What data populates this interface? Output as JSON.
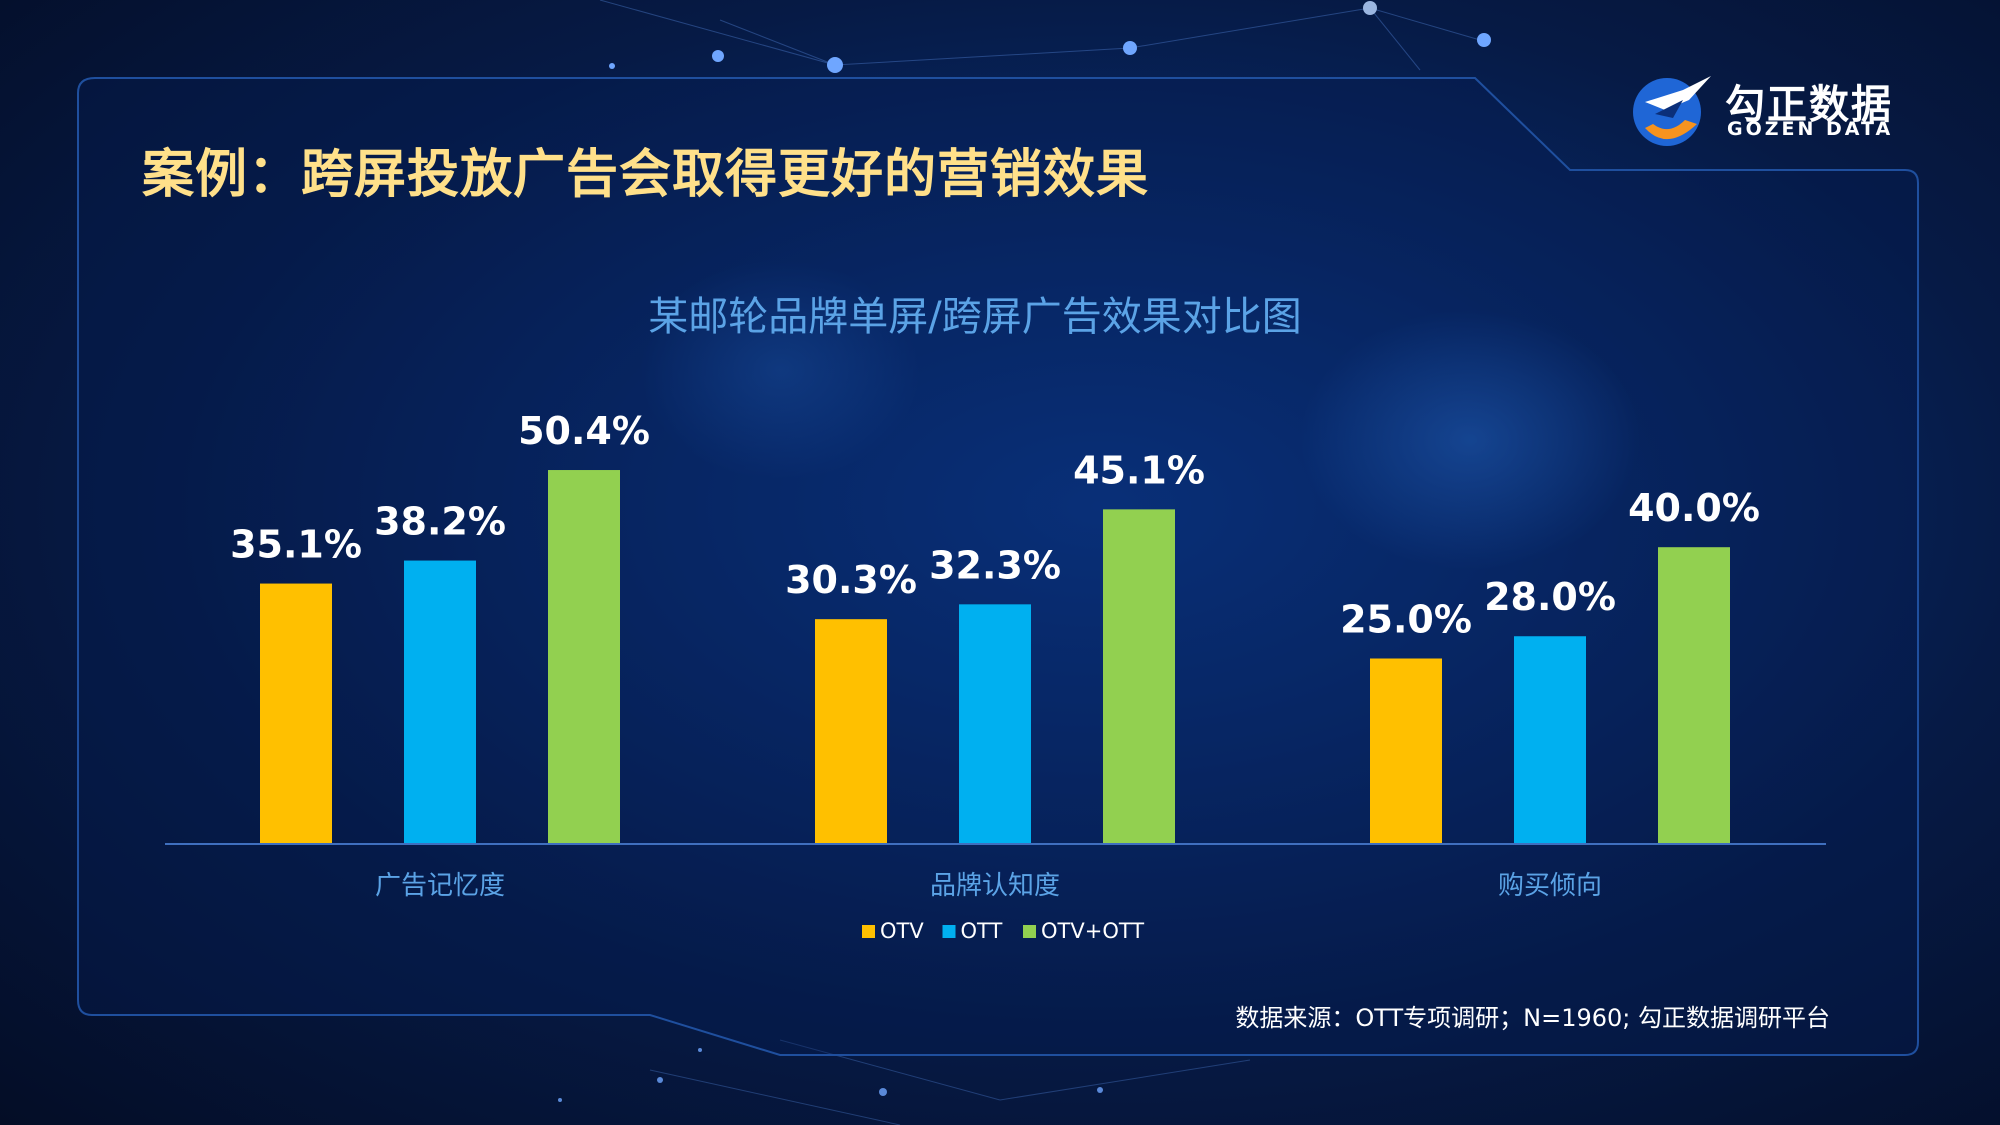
{
  "slide": {
    "title": "案例：跨屏投放广告会取得更好的营销效果",
    "source": "数据来源：OTT专项调研；N=1960; 勾正数据调研平台"
  },
  "logo": {
    "cn": "勾正数据",
    "en": "GOZEN DATA"
  },
  "colors": {
    "otv": "#ffc000",
    "ott": "#00b0f0",
    "otv_ott": "#92d050",
    "title": "#ffe08a",
    "subtitle": "#5ba3e6"
  },
  "chart_data": {
    "type": "bar",
    "title": "某邮轮品牌单屏/跨屏广告效果对比图",
    "categories": [
      "广告记忆度",
      "品牌认知度",
      "购买倾向"
    ],
    "series": [
      {
        "name": "OTV",
        "values": [
          35.1,
          30.3,
          25.0
        ],
        "color": "#ffc000"
      },
      {
        "name": "OTT",
        "values": [
          38.2,
          32.3,
          28.0
        ],
        "color": "#00b0f0"
      },
      {
        "name": "OTV+OTT",
        "values": [
          50.4,
          45.1,
          40.0
        ],
        "color": "#92d050"
      }
    ],
    "value_suffix": "%",
    "ylim": [
      0,
      60
    ],
    "grid": false,
    "legend_position": "bottom"
  }
}
